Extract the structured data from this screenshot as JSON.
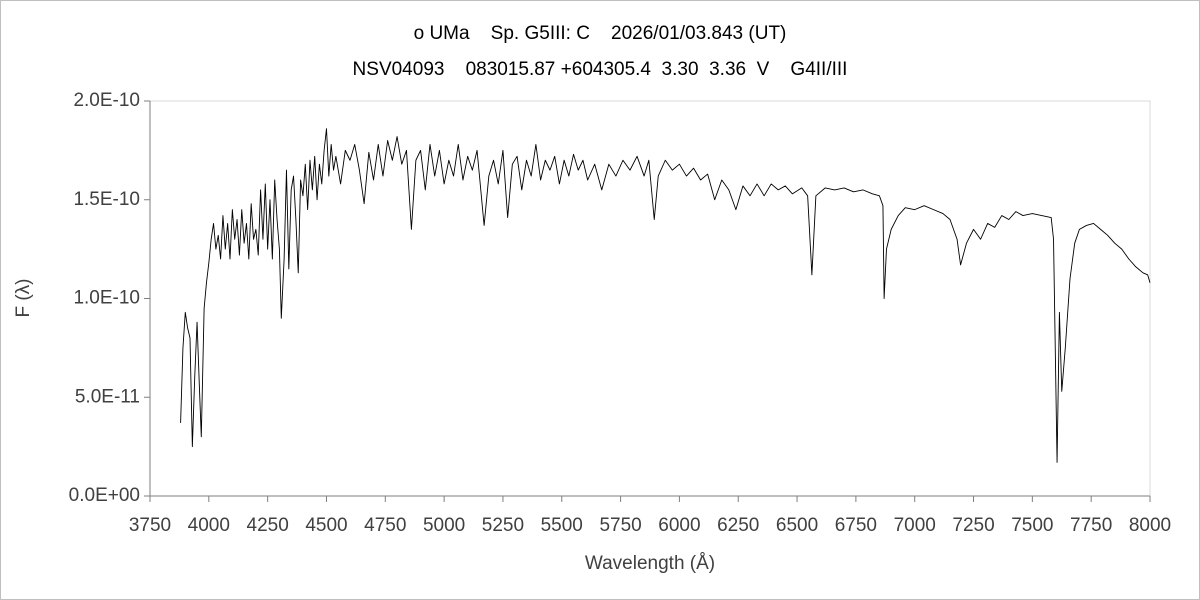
{
  "chart_data": {
    "type": "line",
    "title": "o UMa    Sp. G5III: C    2026/01/03.843 (UT)",
    "subtitle": "NSV04093    083015.87 +604305.4  3.30  3.36  V    G4II/III",
    "x_label": "Wavelength (Å)",
    "y_label": "F (λ)",
    "xlim": [
      3750,
      8000
    ],
    "xticks": [
      3750,
      4000,
      4250,
      4500,
      4750,
      5000,
      5250,
      5500,
      5750,
      6000,
      6250,
      6500,
      6750,
      7000,
      7250,
      7500,
      7750,
      8000
    ],
    "ylim": [
      0,
      2e-10
    ],
    "yticks": [
      {
        "value": 0,
        "label": "0.0E+00"
      },
      {
        "value": 5e-11,
        "label": "5.0E-11"
      },
      {
        "value": 1e-10,
        "label": "1.0E-10"
      },
      {
        "value": 1.5e-10,
        "label": "1.5E-10"
      },
      {
        "value": 2e-10,
        "label": "2.0E-10"
      }
    ],
    "grid": false,
    "series": [
      {
        "color": "#000000",
        "x": [
          3880,
          3890,
          3900,
          3910,
          3920,
          3930,
          3940,
          3950,
          3960,
          3968,
          3980,
          3990,
          4000,
          4010,
          4020,
          4030,
          4040,
          4050,
          4060,
          4070,
          4080,
          4090,
          4100,
          4110,
          4120,
          4130,
          4140,
          4150,
          4160,
          4170,
          4180,
          4190,
          4200,
          4210,
          4220,
          4230,
          4240,
          4250,
          4260,
          4270,
          4280,
          4290,
          4300,
          4308,
          4320,
          4330,
          4340,
          4350,
          4360,
          4370,
          4380,
          4390,
          4400,
          4410,
          4420,
          4430,
          4440,
          4450,
          4460,
          4470,
          4480,
          4490,
          4500,
          4510,
          4520,
          4530,
          4540,
          4560,
          4580,
          4600,
          4620,
          4640,
          4660,
          4680,
          4700,
          4720,
          4740,
          4760,
          4780,
          4800,
          4820,
          4840,
          4861,
          4880,
          4900,
          4920,
          4940,
          4960,
          4980,
          5000,
          5020,
          5040,
          5060,
          5080,
          5100,
          5120,
          5140,
          5170,
          5190,
          5210,
          5230,
          5250,
          5270,
          5290,
          5310,
          5330,
          5350,
          5370,
          5390,
          5410,
          5430,
          5450,
          5470,
          5490,
          5510,
          5530,
          5550,
          5570,
          5590,
          5610,
          5640,
          5670,
          5700,
          5730,
          5760,
          5790,
          5820,
          5850,
          5870,
          5893,
          5910,
          5940,
          5970,
          6000,
          6030,
          6060,
          6090,
          6120,
          6150,
          6180,
          6210,
          6240,
          6270,
          6300,
          6330,
          6360,
          6390,
          6420,
          6450,
          6480,
          6520,
          6545,
          6563,
          6580,
          6620,
          6660,
          6700,
          6740,
          6780,
          6820,
          6850,
          6865,
          6870,
          6880,
          6900,
          6930,
          6960,
          7000,
          7040,
          7080,
          7120,
          7150,
          7180,
          7195,
          7220,
          7250,
          7280,
          7310,
          7340,
          7370,
          7400,
          7430,
          7460,
          7500,
          7540,
          7580,
          7590,
          7605,
          7615,
          7625,
          7640,
          7660,
          7680,
          7700,
          7730,
          7760,
          7790,
          7820,
          7850,
          7880,
          7910,
          7940,
          7970,
          7990,
          8000
        ],
        "values": [
          3.7e-11,
          7.5e-11,
          9.3e-11,
          8.5e-11,
          8e-11,
          2.5e-11,
          6e-11,
          8.8e-11,
          5.5e-11,
          3e-11,
          9.5e-11,
          1.08e-10,
          1.18e-10,
          1.3e-10,
          1.38e-10,
          1.25e-10,
          1.32e-10,
          1.2e-10,
          1.42e-10,
          1.25e-10,
          1.38e-10,
          1.2e-10,
          1.45e-10,
          1.3e-10,
          1.4e-10,
          1.22e-10,
          1.45e-10,
          1.28e-10,
          1.38e-10,
          1.2e-10,
          1.48e-10,
          1.3e-10,
          1.35e-10,
          1.22e-10,
          1.55e-10,
          1.3e-10,
          1.58e-10,
          1.25e-10,
          1.5e-10,
          1.2e-10,
          1.6e-10,
          1.4e-10,
          1.25e-10,
          9e-11,
          1.2e-10,
          1.65e-10,
          1.15e-10,
          1.55e-10,
          1.62e-10,
          1.4e-10,
          1.13e-10,
          1.6e-10,
          1.52e-10,
          1.68e-10,
          1.45e-10,
          1.7e-10,
          1.55e-10,
          1.72e-10,
          1.5e-10,
          1.68e-10,
          1.58e-10,
          1.75e-10,
          1.86e-10,
          1.62e-10,
          1.78e-10,
          1.65e-10,
          1.72e-10,
          1.58e-10,
          1.75e-10,
          1.7e-10,
          1.78e-10,
          1.65e-10,
          1.48e-10,
          1.74e-10,
          1.6e-10,
          1.78e-10,
          1.62e-10,
          1.8e-10,
          1.7e-10,
          1.82e-10,
          1.68e-10,
          1.75e-10,
          1.35e-10,
          1.7e-10,
          1.75e-10,
          1.55e-10,
          1.78e-10,
          1.62e-10,
          1.75e-10,
          1.58e-10,
          1.7e-10,
          1.62e-10,
          1.78e-10,
          1.6e-10,
          1.72e-10,
          1.65e-10,
          1.75e-10,
          1.37e-10,
          1.62e-10,
          1.7e-10,
          1.58e-10,
          1.75e-10,
          1.41e-10,
          1.68e-10,
          1.72e-10,
          1.55e-10,
          1.7e-10,
          1.62e-10,
          1.78e-10,
          1.6e-10,
          1.7e-10,
          1.65e-10,
          1.72e-10,
          1.58e-10,
          1.7e-10,
          1.62e-10,
          1.73e-10,
          1.65e-10,
          1.7e-10,
          1.6e-10,
          1.68e-10,
          1.55e-10,
          1.68e-10,
          1.62e-10,
          1.7e-10,
          1.65e-10,
          1.72e-10,
          1.62e-10,
          1.7e-10,
          1.4e-10,
          1.62e-10,
          1.7e-10,
          1.65e-10,
          1.68e-10,
          1.62e-10,
          1.66e-10,
          1.6e-10,
          1.63e-10,
          1.5e-10,
          1.6e-10,
          1.55e-10,
          1.45e-10,
          1.57e-10,
          1.52e-10,
          1.58e-10,
          1.52e-10,
          1.58e-10,
          1.55e-10,
          1.57e-10,
          1.53e-10,
          1.56e-10,
          1.52e-10,
          1.12e-10,
          1.52e-10,
          1.56e-10,
          1.55e-10,
          1.56e-10,
          1.54e-10,
          1.55e-10,
          1.53e-10,
          1.52e-10,
          1.47e-10,
          1e-10,
          1.25e-10,
          1.35e-10,
          1.42e-10,
          1.46e-10,
          1.45e-10,
          1.47e-10,
          1.45e-10,
          1.43e-10,
          1.4e-10,
          1.3e-10,
          1.17e-10,
          1.28e-10,
          1.35e-10,
          1.3e-10,
          1.38e-10,
          1.36e-10,
          1.42e-10,
          1.4e-10,
          1.44e-10,
          1.42e-10,
          1.43e-10,
          1.42e-10,
          1.41e-10,
          1.3e-10,
          1.7e-11,
          9.3e-11,
          5.3e-11,
          7.5e-11,
          1.1e-10,
          1.28e-10,
          1.35e-10,
          1.37e-10,
          1.38e-10,
          1.35e-10,
          1.32e-10,
          1.28e-10,
          1.25e-10,
          1.2e-10,
          1.16e-10,
          1.13e-10,
          1.12e-10,
          1.08e-10
        ]
      }
    ]
  }
}
